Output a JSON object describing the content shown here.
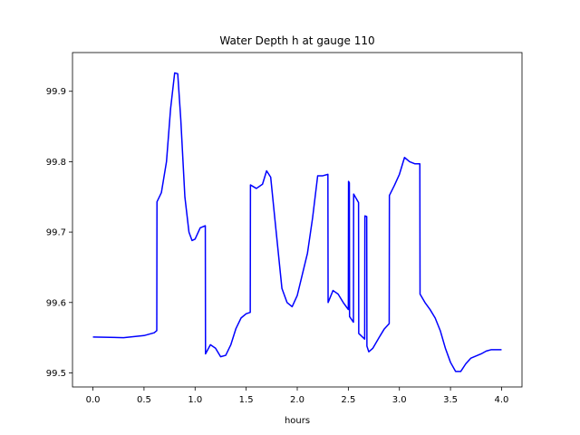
{
  "chart_data": {
    "type": "line",
    "title": "Water Depth h at gauge 110",
    "xlabel": "hours",
    "ylabel": "",
    "xlim": [
      -0.2,
      4.2
    ],
    "ylim": [
      99.48,
      99.955
    ],
    "grid": false,
    "legend": "none",
    "x_ticks": [
      0.0,
      0.5,
      1.0,
      1.5,
      2.0,
      2.5,
      3.0,
      3.5,
      4.0
    ],
    "x_tick_labels": [
      "0.0",
      "0.5",
      "1.0",
      "1.5",
      "2.0",
      "2.5",
      "3.0",
      "3.5",
      "4.0"
    ],
    "y_ticks": [
      99.5,
      99.6,
      99.7,
      99.8,
      99.9
    ],
    "y_tick_labels": [
      "99.5",
      "99.6",
      "99.7",
      "99.8",
      "99.9"
    ],
    "series": [
      {
        "color": "#0000ff",
        "x": [
          0.0,
          0.3,
          0.5,
          0.6,
          0.625,
          0.627,
          0.67,
          0.72,
          0.76,
          0.8,
          0.83,
          0.86,
          0.9,
          0.94,
          0.97,
          1.0,
          1.05,
          1.1,
          1.102,
          1.15,
          1.2,
          1.25,
          1.3,
          1.35,
          1.4,
          1.45,
          1.5,
          1.54,
          1.542,
          1.6,
          1.66,
          1.7,
          1.74,
          1.78,
          1.85,
          1.9,
          1.95,
          2.0,
          2.05,
          2.1,
          2.15,
          2.2,
          2.25,
          2.3,
          2.302,
          2.35,
          2.4,
          2.45,
          2.5,
          2.502,
          2.51,
          2.512,
          2.55,
          2.552,
          2.6,
          2.602,
          2.66,
          2.662,
          2.68,
          2.682,
          2.7,
          2.74,
          2.8,
          2.85,
          2.9,
          2.902,
          2.95,
          3.0,
          3.05,
          3.1,
          3.15,
          3.2,
          3.202,
          3.25,
          3.3,
          3.35,
          3.4,
          3.45,
          3.5,
          3.55,
          3.6,
          3.65,
          3.7,
          3.75,
          3.8,
          3.85,
          3.9,
          3.95,
          4.0
        ],
        "y": [
          99.551,
          99.55,
          99.553,
          99.557,
          99.56,
          99.743,
          99.756,
          99.8,
          99.875,
          99.926,
          99.925,
          99.86,
          99.75,
          99.7,
          99.688,
          99.69,
          99.706,
          99.709,
          99.527,
          99.54,
          99.535,
          99.523,
          99.525,
          99.54,
          99.563,
          99.578,
          99.584,
          99.586,
          99.767,
          99.762,
          99.768,
          99.787,
          99.778,
          99.72,
          99.62,
          99.6,
          99.594,
          99.61,
          99.64,
          99.67,
          99.72,
          99.78,
          99.78,
          99.782,
          99.6,
          99.617,
          99.612,
          99.6,
          99.59,
          99.772,
          99.77,
          99.58,
          99.572,
          99.754,
          99.742,
          99.556,
          99.548,
          99.723,
          99.722,
          99.538,
          99.53,
          99.535,
          99.55,
          99.562,
          99.57,
          99.752,
          99.766,
          99.782,
          99.806,
          99.8,
          99.797,
          99.797,
          99.612,
          99.6,
          99.59,
          99.578,
          99.56,
          99.535,
          99.515,
          99.502,
          99.502,
          99.513,
          99.521,
          99.524,
          99.527,
          99.531,
          99.533,
          99.533,
          99.533
        ]
      }
    ]
  }
}
